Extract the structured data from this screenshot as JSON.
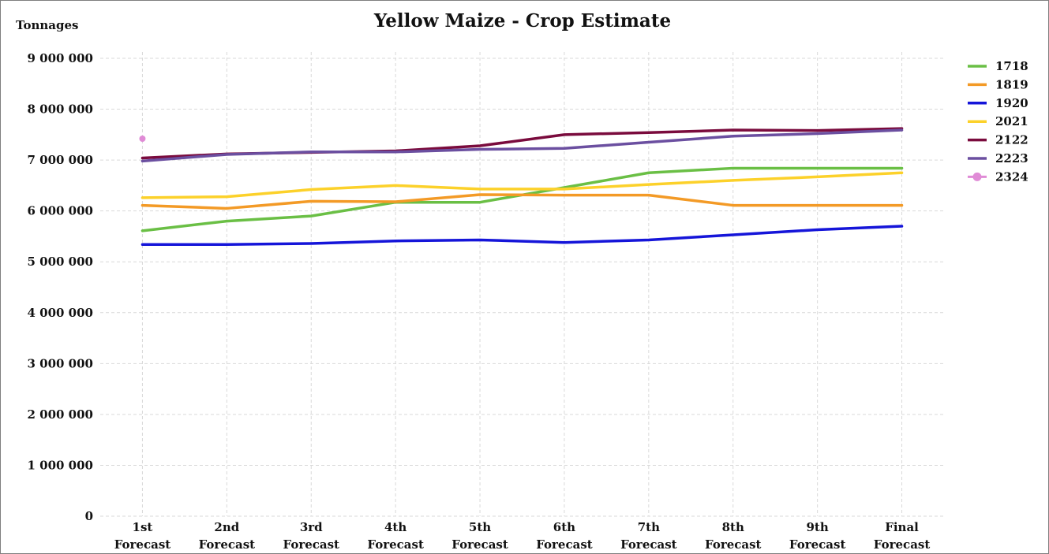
{
  "chart_data": {
    "type": "line",
    "title": "Yellow Maize - Crop Estimate",
    "ylabel": "Tonnages",
    "xlabel": "",
    "ylim": [
      0,
      9000000
    ],
    "yticks": [
      0,
      1000000,
      2000000,
      3000000,
      4000000,
      5000000,
      6000000,
      7000000,
      8000000,
      9000000
    ],
    "ytick_labels": [
      "0",
      "1 000 000",
      "2 000 000",
      "3 000 000",
      "4 000 000",
      "5 000 000",
      "6 000 000",
      "7 000 000",
      "8 000 000",
      "9 000 000"
    ],
    "categories": [
      [
        "1st",
        "Forecast"
      ],
      [
        "2nd",
        "Forecast"
      ],
      [
        "3rd",
        "Forecast"
      ],
      [
        "4th",
        "Forecast"
      ],
      [
        "5th",
        "Forecast"
      ],
      [
        "6th",
        "Forecast"
      ],
      [
        "7th",
        "Forecast"
      ],
      [
        "8th",
        "Forecast"
      ],
      [
        "9th",
        "Forecast"
      ],
      [
        "Final",
        "Forecast"
      ]
    ],
    "grid": true,
    "legend_position": "right",
    "series": [
      {
        "name": "1718",
        "color": "#6abf45",
        "values": [
          5610000,
          5800000,
          5900000,
          6170000,
          6170000,
          6460000,
          6750000,
          6840000,
          6840000,
          6840000
        ]
      },
      {
        "name": "1819",
        "color": "#f39a26",
        "values": [
          6110000,
          6050000,
          6190000,
          6180000,
          6320000,
          6310000,
          6310000,
          6110000,
          6110000,
          6110000
        ]
      },
      {
        "name": "1920",
        "color": "#1515d9",
        "values": [
          5340000,
          5340000,
          5360000,
          5410000,
          5430000,
          5380000,
          5430000,
          5530000,
          5630000,
          5700000
        ]
      },
      {
        "name": "2021",
        "color": "#fcd12a",
        "values": [
          6260000,
          6280000,
          6420000,
          6500000,
          6430000,
          6430000,
          6520000,
          6600000,
          6670000,
          6750000
        ]
      },
      {
        "name": "2122",
        "color": "#7a0b3d",
        "values": [
          7040000,
          7120000,
          7150000,
          7180000,
          7280000,
          7500000,
          7540000,
          7590000,
          7580000,
          7620000
        ]
      },
      {
        "name": "2223",
        "color": "#6b4fa0",
        "values": [
          6980000,
          7110000,
          7160000,
          7160000,
          7210000,
          7230000,
          7350000,
          7470000,
          7520000,
          7590000
        ]
      },
      {
        "name": "2324",
        "color": "#e08bd6",
        "marker": "dot",
        "values": [
          7420000,
          null,
          null,
          null,
          null,
          null,
          null,
          null,
          null,
          null
        ]
      }
    ]
  }
}
